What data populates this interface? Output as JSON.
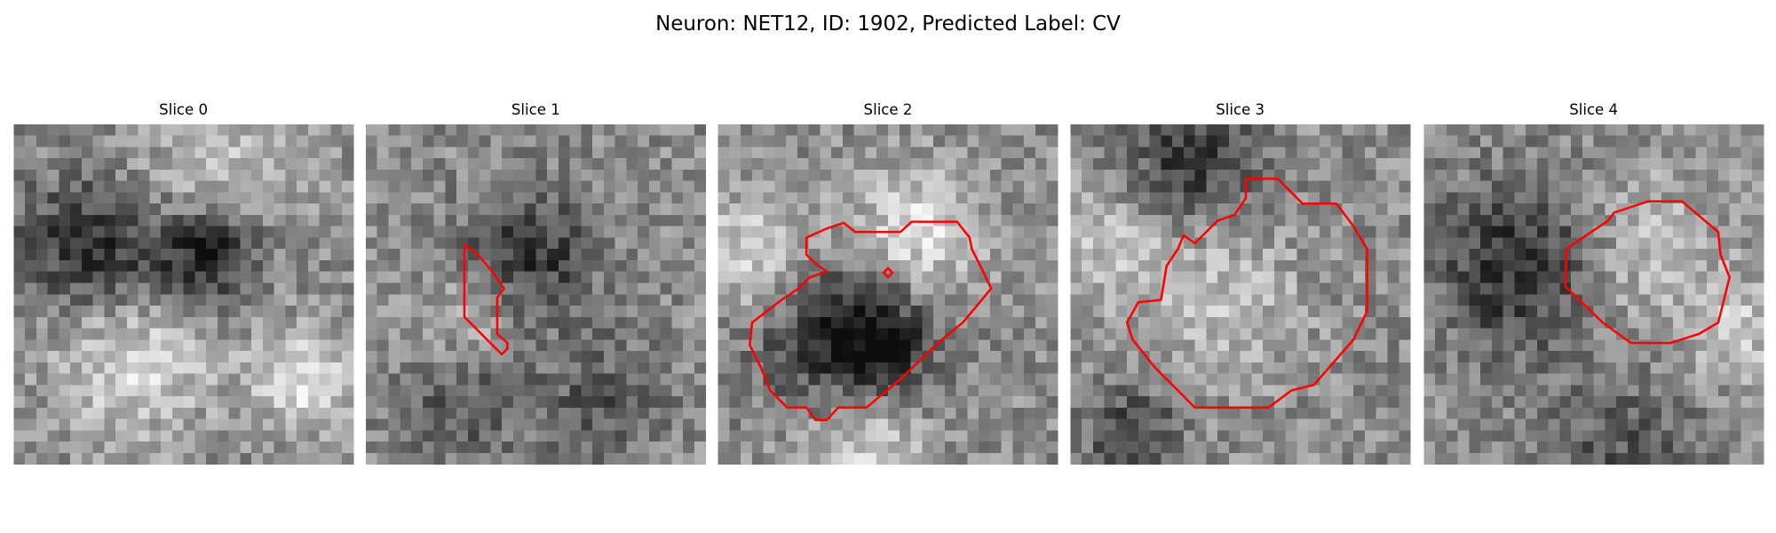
{
  "title": "Neuron: NET12, ID: 1902, Predicted Label: CV",
  "panels": [
    {
      "title": "Slice 0"
    },
    {
      "title": "Slice 1"
    },
    {
      "title": "Slice 2"
    },
    {
      "title": "Slice 3"
    },
    {
      "title": "Slice 4"
    }
  ]
}
